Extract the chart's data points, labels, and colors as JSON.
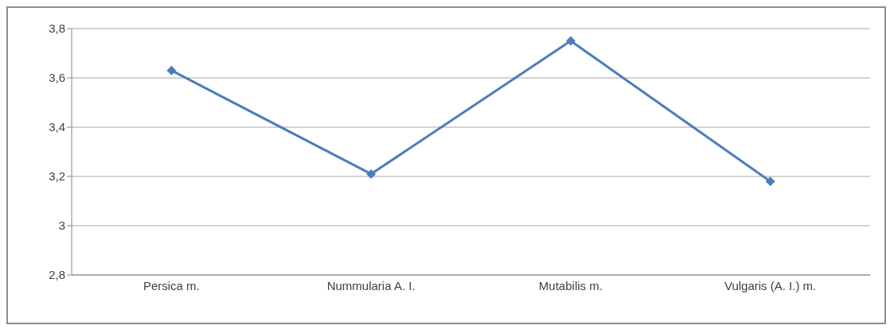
{
  "chart_data": {
    "type": "line",
    "categories": [
      "Persica m.",
      "Nummularia A. I.",
      "Mutabilis m.",
      "Vulgaris (A. I.) m."
    ],
    "series": [
      {
        "color": "#4a7ebb",
        "values": [
          3.63,
          3.21,
          3.75,
          3.18
        ]
      }
    ],
    "ylim": [
      2.8,
      3.8
    ],
    "yticks": [
      {
        "value": 2.8,
        "label": "2,8"
      },
      {
        "value": 3,
        "label": "3"
      },
      {
        "value": 3.2,
        "label": "3,2"
      },
      {
        "value": 3.4,
        "label": "3,4"
      },
      {
        "value": 3.6,
        "label": "3,6"
      },
      {
        "value": 3.8,
        "label": "3,8"
      }
    ],
    "grid": "y",
    "legend": false,
    "marker": "diamond",
    "line_style": "solid"
  }
}
